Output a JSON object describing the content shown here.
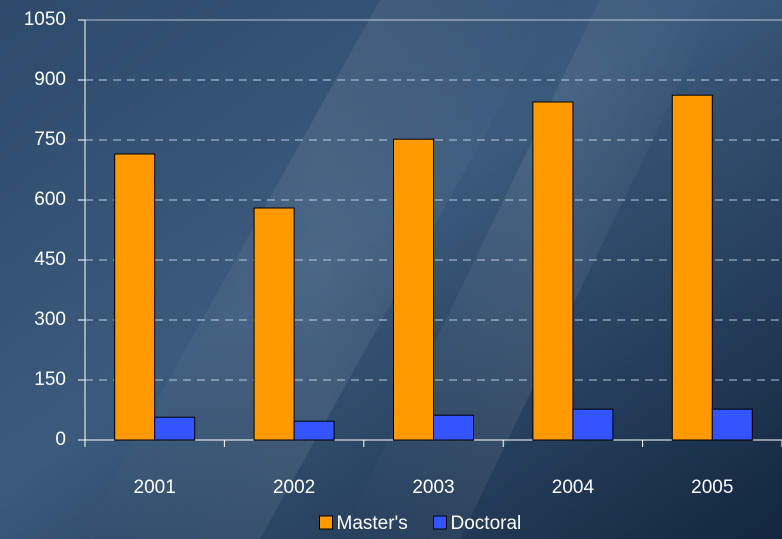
{
  "chart_data": {
    "type": "bar",
    "categories": [
      "2001",
      "2002",
      "2003",
      "2004",
      "2005"
    ],
    "series": [
      {
        "name": "Master's",
        "color": "#ff9900",
        "values": [
          715,
          580,
          752,
          845,
          862
        ]
      },
      {
        "name": "Doctoral",
        "color": "#3355ff",
        "values": [
          57,
          47,
          62,
          77,
          77
        ]
      }
    ],
    "ylim": [
      0,
      1050
    ],
    "yticks": [
      0,
      150,
      300,
      450,
      600,
      750,
      900,
      1050
    ],
    "grid": true,
    "legend": "bottom"
  }
}
